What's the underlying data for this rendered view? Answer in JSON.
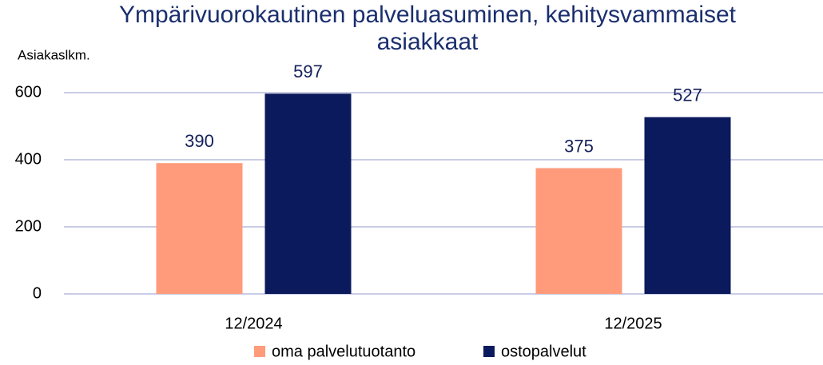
{
  "chart_data": {
    "type": "bar",
    "title": "Ympärivuorokautinen palveluasuminen, kehitysvammaiset asiakkaat",
    "y_label": "Asiakaslkm.",
    "categories": [
      "12/2024",
      "12/2025"
    ],
    "series": [
      {
        "name": "oma palvelutuotanto",
        "color": "#ff9b7b",
        "values": [
          390,
          375
        ]
      },
      {
        "name": "ostopalvelut",
        "color": "#0b1a5c",
        "values": [
          597,
          527
        ]
      }
    ],
    "ylim": [
      0,
      600
    ],
    "yticks": [
      0,
      200,
      400,
      600
    ],
    "grid": true,
    "legend": "bottom",
    "data_labels": true
  }
}
